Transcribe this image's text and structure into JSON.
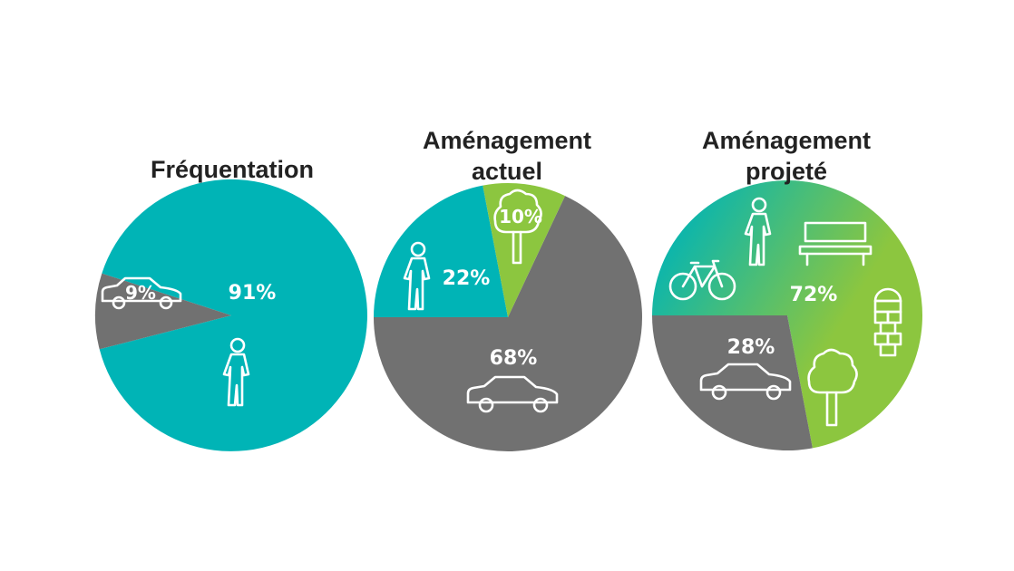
{
  "colors": {
    "walk": "#00b4b6",
    "car": "#717171",
    "green": "#8cc63f",
    "gradient_start": "#00b4b6",
    "gradient_end": "#8cc63f",
    "text": "#222222",
    "icon": "#ffffff"
  },
  "chart_data": [
    {
      "type": "pie",
      "title": "Fréquentation",
      "slices": [
        {
          "label": "91%",
          "value": 91,
          "color": "#00b4b6",
          "icons": [
            "pedestrian-icon"
          ]
        },
        {
          "label": "9%",
          "value": 9,
          "color": "#717171",
          "icons": [
            "car-icon"
          ]
        }
      ]
    },
    {
      "type": "pie",
      "title": [
        "Aménagement",
        "actuel"
      ],
      "slices": [
        {
          "label": "68%",
          "value": 68,
          "color": "#717171",
          "icons": [
            "car-icon"
          ]
        },
        {
          "label": "22%",
          "value": 22,
          "color": "#00b4b6",
          "icons": [
            "pedestrian-icon"
          ]
        },
        {
          "label": "10%",
          "value": 10,
          "color": "#8cc63f",
          "icons": [
            "tree-icon"
          ]
        }
      ]
    },
    {
      "type": "pie",
      "title": [
        "Aménagement",
        "projeté"
      ],
      "slices": [
        {
          "label": "72%",
          "value": 72,
          "color": "gradient #00b4b6 → #8cc63f",
          "icons": [
            "pedestrian-icon",
            "bench-icon",
            "bicycle-icon",
            "hopscotch-icon",
            "tree-icon"
          ]
        },
        {
          "label": "28%",
          "value": 28,
          "color": "#717171",
          "icons": [
            "car-icon"
          ]
        }
      ]
    }
  ]
}
